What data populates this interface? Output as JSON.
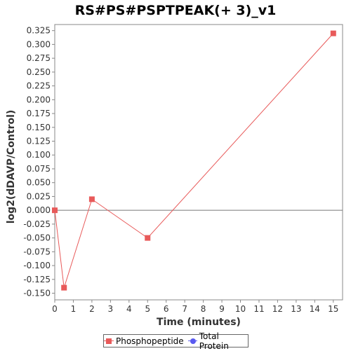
{
  "chart_data": {
    "type": "line",
    "title": "RS#PS#PSPTPEAK(+ 3)_v1",
    "xlabel": "Time (minutes)",
    "ylabel": "log2(dDAVP/Control)",
    "xlim": [
      0,
      15.5
    ],
    "ylim": [
      -0.162,
      0.336
    ],
    "x_ticks": [
      0,
      1,
      2,
      3,
      4,
      5,
      6,
      7,
      8,
      9,
      10,
      11,
      12,
      13,
      14,
      15
    ],
    "y_ticks": [
      0.325,
      0.3,
      0.275,
      0.25,
      0.225,
      0.2,
      0.175,
      0.15,
      0.125,
      0.1,
      0.075,
      0.05,
      0.025,
      0.0,
      -0.025,
      -0.05,
      -0.075,
      -0.1,
      -0.125,
      -0.15
    ],
    "y_tick_labels": [
      "0.325",
      "0.300",
      "0.275",
      "0.250",
      "0.225",
      "0.200",
      "0.175",
      "0.150",
      "0.125",
      "0.100",
      "0.075",
      "0.050",
      "0.025",
      "0.000",
      "-0.025",
      "-0.050",
      "-0.075",
      "-0.100",
      "-0.125",
      "-0.150"
    ],
    "grid": false,
    "zero_line": true,
    "legend_position": "bottom",
    "series": [
      {
        "name": "Phosphopeptide",
        "color": "#e85a5a",
        "marker": "square",
        "points": [
          {
            "x": 0,
            "y": 0.0
          },
          {
            "x": 0.5,
            "y": -0.14
          },
          {
            "x": 2,
            "y": 0.02
          },
          {
            "x": 5,
            "y": -0.05
          },
          {
            "x": 15,
            "y": 0.32
          }
        ]
      },
      {
        "name": "Total Protein",
        "color": "#5a5af0",
        "marker": "circle",
        "points": []
      }
    ]
  }
}
